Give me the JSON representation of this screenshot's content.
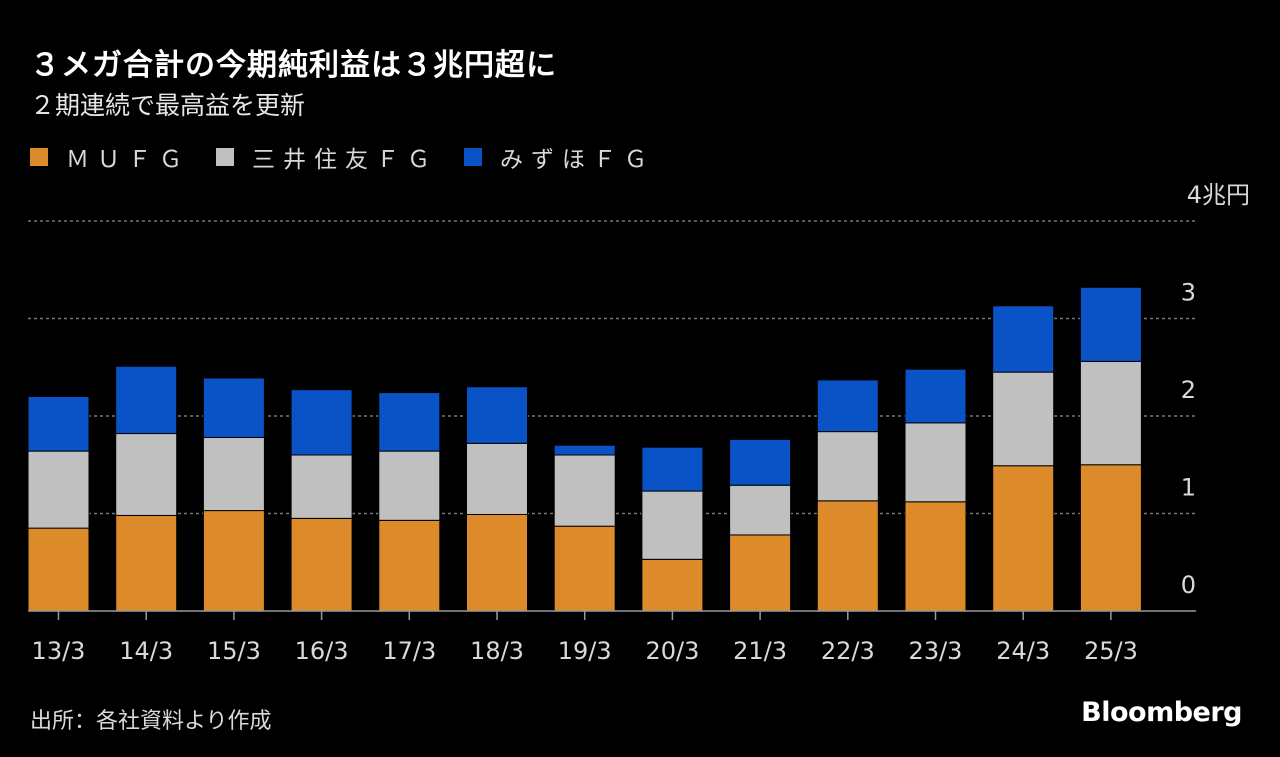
{
  "title": "３メガ合計の今期純利益は３兆円超に",
  "subtitle": "２期連続で最高益を更新",
  "legend": [
    {
      "label": "ＭＵＦＧ",
      "color": "#dd8b2a"
    },
    {
      "label": "三井住友ＦＧ",
      "color": "#c0c0c0"
    },
    {
      "label": "みずほＦＧ",
      "color": "#0953c6"
    }
  ],
  "source": "出所：各社資料より作成",
  "brand": "Bloomberg",
  "colors": {
    "background": "#000000",
    "grid": "#777777",
    "axis": "#9a9a9a",
    "tick_text": "#d9d9d9"
  },
  "chart_data": {
    "type": "bar",
    "stacked": true,
    "categories": [
      "13/3",
      "14/3",
      "15/3",
      "16/3",
      "17/3",
      "18/3",
      "19/3",
      "20/3",
      "21/3",
      "22/3",
      "23/3",
      "24/3",
      "25/3"
    ],
    "series": [
      {
        "name": "ＭＵＦＧ",
        "values": [
          0.85,
          0.98,
          1.03,
          0.95,
          0.93,
          0.99,
          0.87,
          0.53,
          0.78,
          1.13,
          1.12,
          1.49,
          1.5
        ]
      },
      {
        "name": "三井住友ＦＧ",
        "values": [
          0.79,
          0.84,
          0.75,
          0.65,
          0.71,
          0.73,
          0.73,
          0.7,
          0.51,
          0.71,
          0.81,
          0.96,
          1.06
        ]
      },
      {
        "name": "みずほＦＧ",
        "values": [
          0.56,
          0.69,
          0.61,
          0.67,
          0.6,
          0.58,
          0.1,
          0.45,
          0.47,
          0.53,
          0.55,
          0.68,
          0.76
        ]
      }
    ],
    "ylim": [
      0,
      4
    ],
    "yticks": [
      0,
      1,
      2,
      3,
      4
    ],
    "ytick_labels": [
      "0",
      "1",
      "2",
      "3",
      "4兆円"
    ],
    "grid": true,
    "xlabel": "",
    "ylabel": ""
  }
}
